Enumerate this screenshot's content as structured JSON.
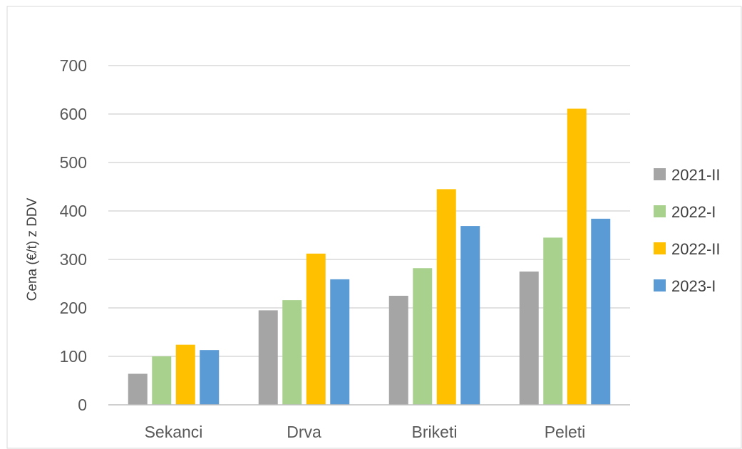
{
  "chart_data": {
    "type": "bar",
    "title": "",
    "xlabel": "",
    "ylabel": "Cena (€/t) z DDV",
    "categories": [
      "Sekanci",
      "Drva",
      "Briketi",
      "Peleti"
    ],
    "series": [
      {
        "name": "2021-II",
        "color": "#a5a5a5",
        "values": [
          64,
          195,
          225,
          275
        ]
      },
      {
        "name": "2022-I",
        "color": "#a9d18e",
        "values": [
          100,
          216,
          282,
          345
        ]
      },
      {
        "name": "2022-II",
        "color": "#ffc000",
        "values": [
          124,
          312,
          445,
          611
        ]
      },
      {
        "name": "2023-I",
        "color": "#5b9bd5",
        "values": [
          113,
          259,
          369,
          384
        ]
      }
    ],
    "ylim": [
      0,
      700
    ],
    "yticks": [
      0,
      100,
      200,
      300,
      400,
      500,
      600,
      700
    ],
    "grid": true,
    "legend_position": "right"
  }
}
